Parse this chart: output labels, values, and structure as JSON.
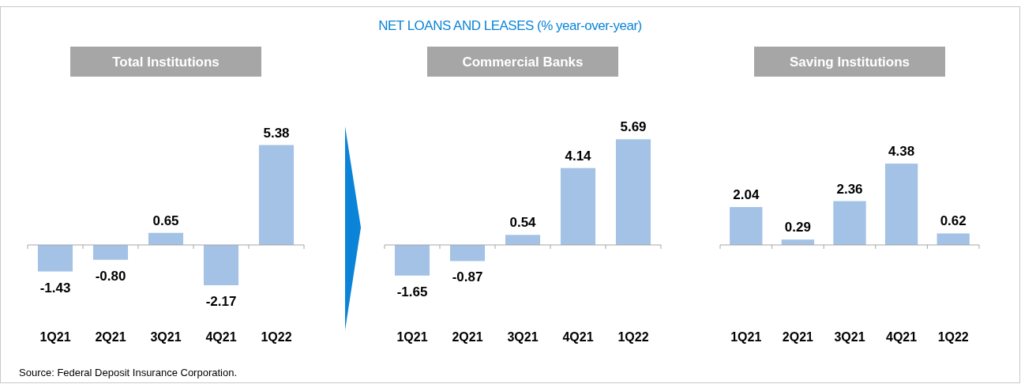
{
  "chart_data": [
    {
      "type": "bar",
      "title": "Total Institutions",
      "categories": [
        "1Q21",
        "2Q21",
        "3Q21",
        "4Q21",
        "1Q22"
      ],
      "values": [
        -1.43,
        -0.8,
        0.65,
        -2.17,
        5.38
      ],
      "value_labels": [
        "-1.43",
        "-0.80",
        "0.65",
        "-2.17",
        "5.38"
      ],
      "color": "#a3c2e6",
      "annotations": [
        "NET LOANS AND LEASES (% year-over-year)",
        "Source: Federal Deposit Insurance Corporation."
      ]
    },
    {
      "type": "bar",
      "title": "Commercial Banks",
      "categories": [
        "1Q21",
        "2Q21",
        "3Q21",
        "4Q21",
        "1Q22"
      ],
      "values": [
        -1.65,
        -0.87,
        0.54,
        4.14,
        5.69
      ],
      "color": "#a3c2e6",
      "data_labels": true
    },
    {
      "type": "bar",
      "title": "Saving Institutions",
      "categories": [
        "1Q21",
        "2Q21",
        "3Q21",
        "4Q21",
        "1Q22"
      ],
      "values": [
        2.04,
        0.29,
        2.36,
        4.38,
        0.62
      ],
      "color": "#a3c2e6",
      "data_labels": true
    }
  ]
}
